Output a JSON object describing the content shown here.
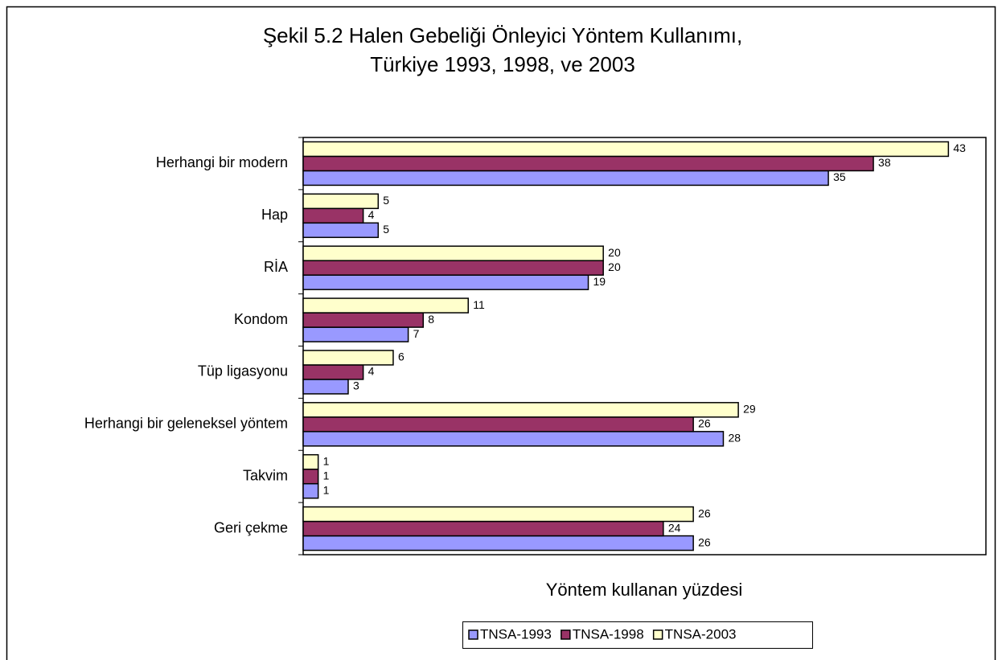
{
  "chart_data": {
    "type": "barh",
    "title": [
      "Şekil 5.2 Halen Gebeliği Önleyici Yöntem Kullanımı,",
      "Türkiye 1993, 1998, ve 2003"
    ],
    "xlabel": "Yöntem kullanan yüzdesi",
    "categories": [
      "Herhangi bir modern",
      "Hap",
      "RİA",
      "Kondom",
      "Tüp ligasyonu",
      "Herhangi bir geleneksel yöntem",
      "Takvim",
      "Geri çekme"
    ],
    "series": [
      {
        "name": "TNSA-1993",
        "color": "#9999ff",
        "values": [
          35,
          5,
          19,
          7,
          3,
          28,
          1,
          26
        ]
      },
      {
        "name": "TNSA-1998",
        "color": "#993366",
        "values": [
          38,
          4,
          20,
          8,
          4,
          26,
          1,
          24
        ]
      },
      {
        "name": "TNSA-2003",
        "color": "#ffffcc",
        "values": [
          43,
          5,
          20,
          11,
          6,
          29,
          1,
          26
        ]
      }
    ],
    "xlim": [
      0,
      45.5
    ],
    "legend": "bottom"
  }
}
